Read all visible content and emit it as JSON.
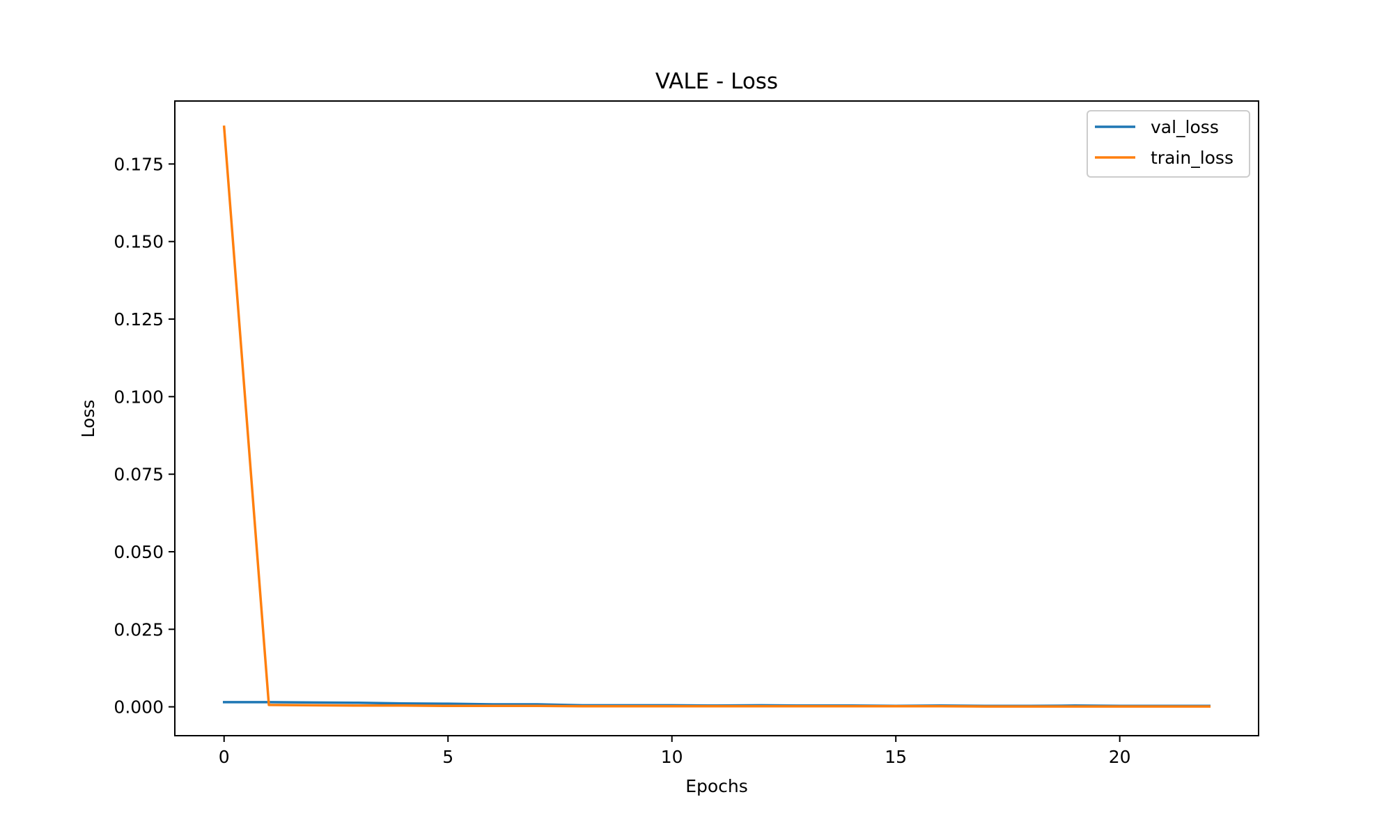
{
  "chart_data": {
    "type": "line",
    "title": "VALE - Loss",
    "xlabel": "Epochs",
    "ylabel": "Loss",
    "xlim": [
      -1.1,
      23.1
    ],
    "ylim": [
      -0.0093,
      0.1953
    ],
    "xticks": [
      0,
      5,
      10,
      15,
      20
    ],
    "xtick_labels": [
      "0",
      "5",
      "10",
      "15",
      "20"
    ],
    "yticks": [
      0.0,
      0.025,
      0.05,
      0.075,
      0.1,
      0.125,
      0.15,
      0.175
    ],
    "ytick_labels": [
      "0.000",
      "0.025",
      "0.050",
      "0.075",
      "0.100",
      "0.125",
      "0.150",
      "0.175"
    ],
    "grid": false,
    "legend_position": "top-right",
    "x": [
      0,
      1,
      2,
      3,
      4,
      5,
      6,
      7,
      8,
      9,
      10,
      11,
      12,
      13,
      14,
      15,
      16,
      17,
      18,
      19,
      20,
      21,
      22
    ],
    "series": [
      {
        "name": "val_loss",
        "color": "#1f77b4",
        "values": [
          0.0015,
          0.0015,
          0.0014,
          0.0013,
          0.0011,
          0.001,
          0.0008,
          0.0008,
          0.0005,
          0.0005,
          0.0005,
          0.0004,
          0.0005,
          0.0004,
          0.0004,
          0.0003,
          0.0004,
          0.0003,
          0.0003,
          0.0004,
          0.0003,
          0.0003,
          0.0003
        ]
      },
      {
        "name": "train_loss",
        "color": "#ff7f0e",
        "values": [
          0.187,
          0.0006,
          0.0005,
          0.0004,
          0.0004,
          0.0003,
          0.0003,
          0.0003,
          0.0002,
          0.0002,
          0.0002,
          0.0002,
          0.0002,
          0.0002,
          0.0002,
          0.0002,
          0.0002,
          0.0001,
          0.0001,
          0.0001,
          0.0001,
          0.0001,
          0.0001
        ]
      }
    ]
  }
}
